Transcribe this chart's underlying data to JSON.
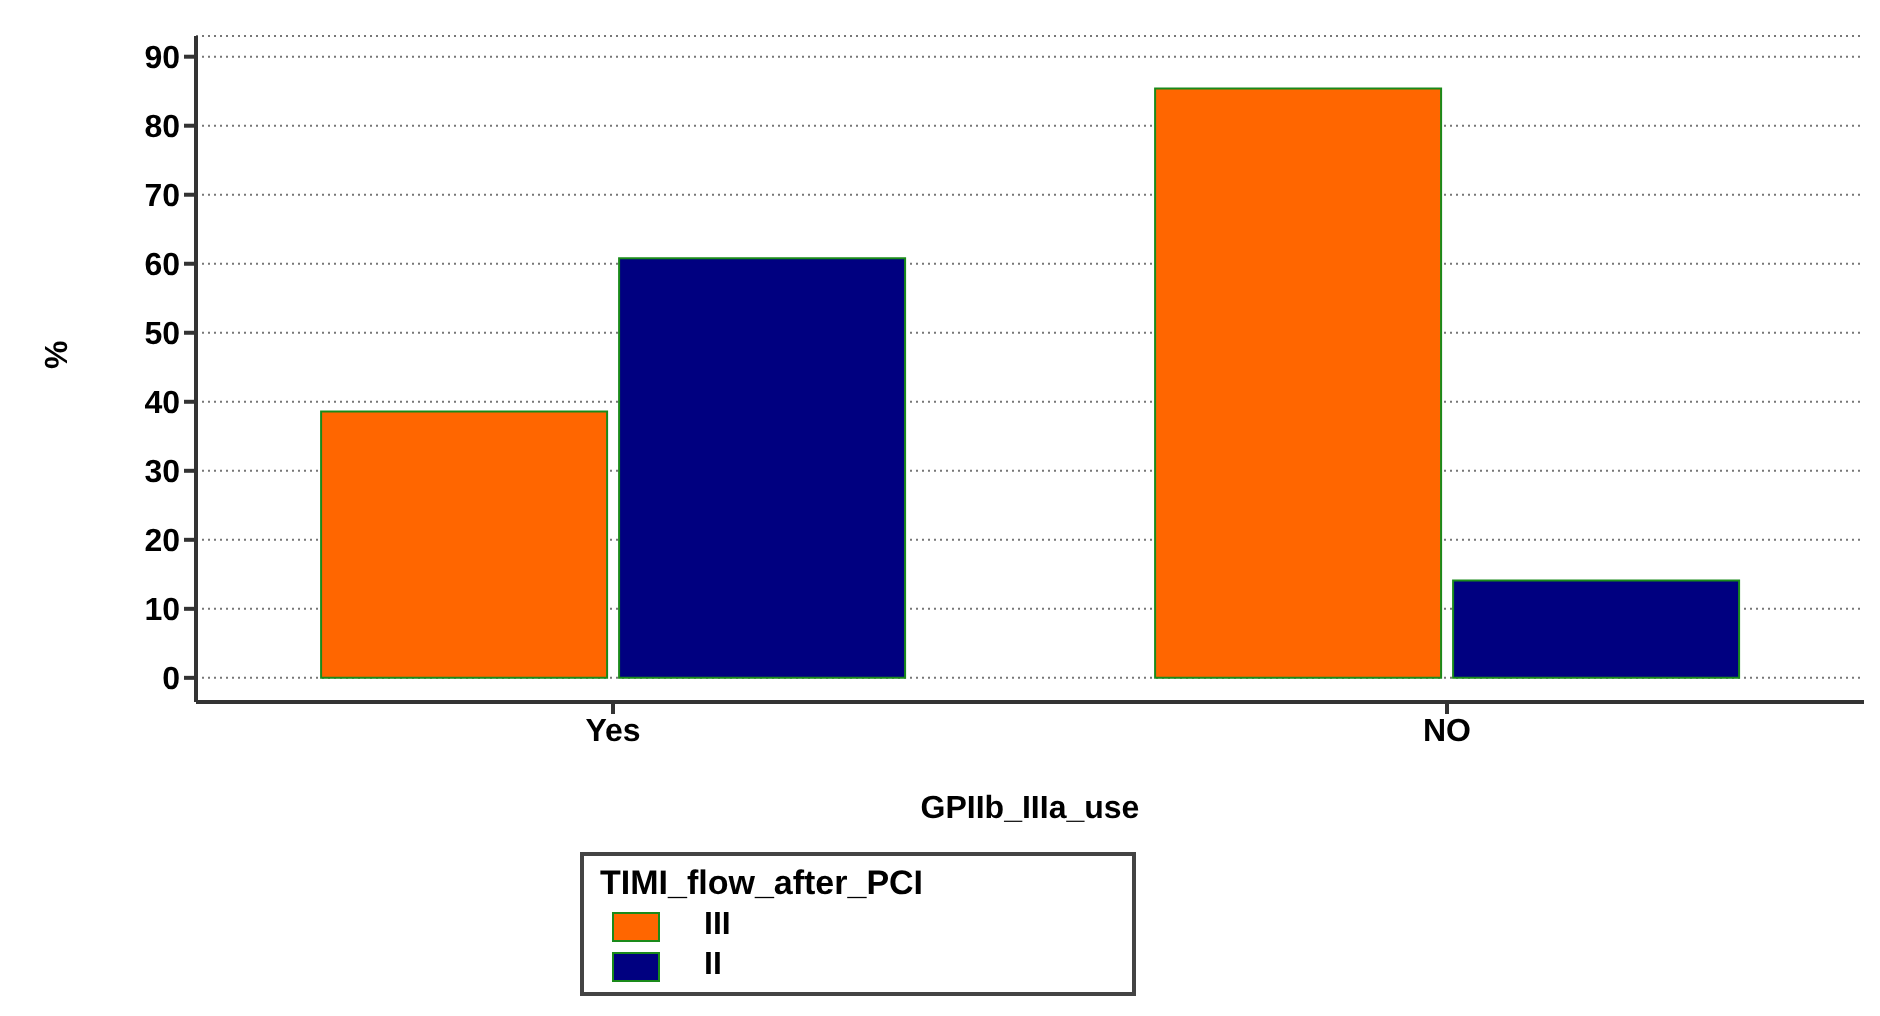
{
  "chart_data": {
    "type": "bar",
    "xlabel": "GPIIb_IIIa_use",
    "ylabel": "%",
    "legend_title": "TIMI_flow_after_PCI",
    "categories": [
      "Yes",
      "NO"
    ],
    "series": [
      {
        "name": "III",
        "color": "#ff6600",
        "values": [
          38.6,
          85.4
        ]
      },
      {
        "name": "II",
        "color": "#000080",
        "values": [
          60.8,
          14.1
        ]
      }
    ],
    "ylim": [
      -3.5,
      93
    ],
    "yticks": [
      0,
      10,
      20,
      30,
      40,
      50,
      60,
      70,
      80,
      90
    ],
    "grid": "y",
    "legend": "bottom"
  }
}
